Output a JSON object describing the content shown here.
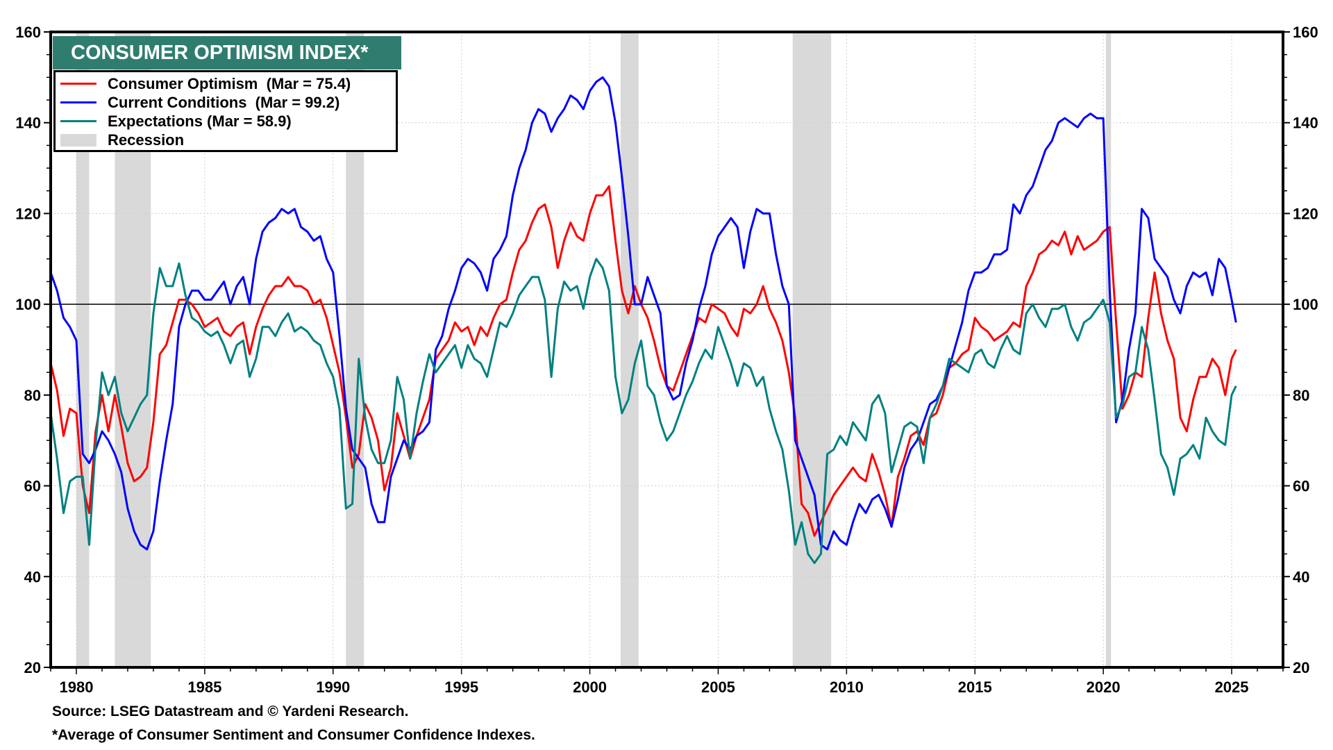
{
  "chart_data": {
    "type": "line",
    "title": "CONSUMER OPTIMISM INDEX*",
    "xlabel": "",
    "ylabel": "",
    "xlim": [
      1979.0,
      2027.0
    ],
    "ylim": [
      20,
      160
    ],
    "y_ticks": [
      20,
      40,
      60,
      80,
      100,
      120,
      140,
      160
    ],
    "x_ticks": [
      1980,
      1985,
      1990,
      1995,
      2000,
      2005,
      2010,
      2015,
      2020,
      2025
    ],
    "x_tick_labels": [
      "1980",
      "1985",
      "1990",
      "1995",
      "2000",
      "2005",
      "2010",
      "2015",
      "2020",
      "2025"
    ],
    "y_tick_labels": [
      "20",
      "40",
      "60",
      "80",
      "100",
      "120",
      "140",
      "160"
    ],
    "axes": "left-and-right",
    "grid": true,
    "reference_line": 100,
    "legend_position": "top-left",
    "recessions": [
      {
        "start": 1980.0,
        "end": 1980.5
      },
      {
        "start": 1981.5,
        "end": 1982.9
      },
      {
        "start": 1990.5,
        "end": 1991.2
      },
      {
        "start": 2001.2,
        "end": 2001.9
      },
      {
        "start": 2007.9,
        "end": 2009.4
      },
      {
        "start": 2020.1,
        "end": 2020.3
      }
    ],
    "legend": [
      {
        "label": "Consumer Optimism  (Mar = 75.4)",
        "color": "#ff0000",
        "kind": "line"
      },
      {
        "label": "Current Conditions  (Mar = 99.2)",
        "color": "#0000ff",
        "kind": "line"
      },
      {
        "label": "Expectations (Mar = 58.9)",
        "color": "#008080",
        "kind": "line"
      },
      {
        "label": "Recession",
        "color": "#d9d9d9",
        "kind": "area"
      }
    ],
    "x": [
      1979.0,
      1979.25,
      1979.5,
      1979.75,
      1980.0,
      1980.25,
      1980.5,
      1980.75,
      1981.0,
      1981.25,
      1981.5,
      1981.75,
      1982.0,
      1982.25,
      1982.5,
      1982.75,
      1983.0,
      1983.25,
      1983.5,
      1983.75,
      1984.0,
      1984.25,
      1984.5,
      1984.75,
      1985.0,
      1985.25,
      1985.5,
      1985.75,
      1986.0,
      1986.25,
      1986.5,
      1986.75,
      1987.0,
      1987.25,
      1987.5,
      1987.75,
      1988.0,
      1988.25,
      1988.5,
      1988.75,
      1989.0,
      1989.25,
      1989.5,
      1989.75,
      1990.0,
      1990.25,
      1990.5,
      1990.75,
      1991.0,
      1991.25,
      1991.5,
      1991.75,
      1992.0,
      1992.25,
      1992.5,
      1992.75,
      1993.0,
      1993.25,
      1993.5,
      1993.75,
      1994.0,
      1994.25,
      1994.5,
      1994.75,
      1995.0,
      1995.25,
      1995.5,
      1995.75,
      1996.0,
      1996.25,
      1996.5,
      1996.75,
      1997.0,
      1997.25,
      1997.5,
      1997.75,
      1998.0,
      1998.25,
      1998.5,
      1998.75,
      1999.0,
      1999.25,
      1999.5,
      1999.75,
      2000.0,
      2000.25,
      2000.5,
      2000.75,
      2001.0,
      2001.25,
      2001.5,
      2001.75,
      2002.0,
      2002.25,
      2002.5,
      2002.75,
      2003.0,
      2003.25,
      2003.5,
      2003.75,
      2004.0,
      2004.25,
      2004.5,
      2004.75,
      2005.0,
      2005.25,
      2005.5,
      2005.75,
      2006.0,
      2006.25,
      2006.5,
      2006.75,
      2007.0,
      2007.25,
      2007.5,
      2007.75,
      2008.0,
      2008.25,
      2008.5,
      2008.75,
      2009.0,
      2009.25,
      2009.5,
      2009.75,
      2010.0,
      2010.25,
      2010.5,
      2010.75,
      2011.0,
      2011.25,
      2011.5,
      2011.75,
      2012.0,
      2012.25,
      2012.5,
      2012.75,
      2013.0,
      2013.25,
      2013.5,
      2013.75,
      2014.0,
      2014.25,
      2014.5,
      2014.75,
      2015.0,
      2015.25,
      2015.5,
      2015.75,
      2016.0,
      2016.25,
      2016.5,
      2016.75,
      2017.0,
      2017.25,
      2017.5,
      2017.75,
      2018.0,
      2018.25,
      2018.5,
      2018.75,
      2019.0,
      2019.25,
      2019.5,
      2019.75,
      2020.0,
      2020.25,
      2020.5,
      2020.75,
      2021.0,
      2021.25,
      2021.5,
      2021.75,
      2022.0,
      2022.25,
      2022.5,
      2022.75,
      2023.0,
      2023.25,
      2023.5,
      2023.75,
      2024.0,
      2024.25,
      2024.5,
      2024.75,
      2025.0,
      2025.17
    ],
    "series": [
      {
        "name": "Consumer Optimism",
        "color": "#ff0000",
        "values": [
          87,
          81,
          71,
          77,
          76,
          60,
          54,
          72,
          80,
          72,
          80,
          73,
          65,
          61,
          62,
          64,
          74,
          89,
          91,
          96,
          101,
          101,
          100,
          98,
          95,
          96,
          97,
          94,
          93,
          95,
          96,
          89,
          95,
          99,
          102,
          104,
          104,
          106,
          104,
          104,
          103,
          100,
          101,
          97,
          91,
          85,
          75,
          64,
          67,
          78,
          75,
          70,
          59,
          64,
          76,
          71,
          66,
          71,
          75,
          79,
          88,
          90,
          92,
          96,
          94,
          95,
          91,
          95,
          93,
          97,
          100,
          101,
          107,
          112,
          114,
          118,
          121,
          122,
          117,
          108,
          114,
          118,
          115,
          114,
          120,
          124,
          124,
          126,
          114,
          103,
          98,
          104,
          100,
          97,
          92,
          86,
          82,
          81,
          85,
          89,
          93,
          97,
          96,
          100,
          99,
          98,
          95,
          93,
          99,
          98,
          100,
          104,
          99,
          96,
          92,
          85,
          75,
          56,
          54,
          49,
          52,
          55,
          58,
          60,
          62,
          64,
          62,
          61,
          67,
          63,
          58,
          51,
          62,
          66,
          71,
          72,
          69,
          75,
          76,
          80,
          86,
          87,
          89,
          90,
          97,
          95,
          94,
          92,
          93,
          94,
          96,
          95,
          104,
          107,
          111,
          112,
          114,
          113,
          116,
          111,
          115,
          112,
          113,
          114,
          116,
          117,
          96,
          77,
          80,
          85,
          84,
          97,
          107,
          98,
          92,
          88,
          75,
          72,
          79,
          84,
          84,
          88,
          86,
          80,
          88,
          90,
          86,
          92,
          86,
          75.4
        ]
      },
      {
        "name": "Current Conditions",
        "color": "#0000ff",
        "values": [
          107,
          103,
          97,
          95,
          92,
          67,
          65,
          68,
          72,
          70,
          67,
          63,
          55,
          50,
          47,
          46,
          50,
          61,
          70,
          78,
          95,
          100,
          103,
          103,
          101,
          101,
          103,
          105,
          100,
          104,
          106,
          100,
          110,
          116,
          118,
          119,
          121,
          120,
          121,
          117,
          116,
          114,
          115,
          110,
          107,
          93,
          77,
          68,
          66,
          64,
          56,
          52,
          52,
          62,
          66,
          70,
          68,
          71,
          72,
          74,
          90,
          93,
          99,
          103,
          108,
          110,
          109,
          107,
          103,
          110,
          112,
          115,
          124,
          130,
          134,
          140,
          143,
          142,
          138,
          141,
          143,
          146,
          145,
          143,
          147,
          149,
          150,
          148,
          140,
          128,
          115,
          100,
          100,
          106,
          102,
          98,
          82,
          79,
          80,
          87,
          92,
          99,
          104,
          111,
          115,
          117,
          119,
          117,
          108,
          116,
          121,
          120,
          120,
          111,
          104,
          100,
          70,
          66,
          62,
          58,
          47,
          46,
          50,
          48,
          47,
          52,
          56,
          54,
          57,
          58,
          55,
          51,
          57,
          64,
          68,
          70,
          74,
          78,
          79,
          82,
          86,
          91,
          96,
          103,
          107,
          107,
          108,
          111,
          111,
          112,
          122,
          120,
          124,
          126,
          130,
          134,
          136,
          140,
          141,
          140,
          139,
          141,
          142,
          141,
          141,
          103,
          74,
          79,
          90,
          98,
          121,
          119,
          110,
          108,
          106,
          101,
          98,
          104,
          107,
          106,
          107,
          102,
          110,
          108,
          101,
          96,
          94,
          104,
          102,
          99.2
        ]
      },
      {
        "name": "Expectations",
        "color": "#008080",
        "values": [
          76,
          66,
          54,
          61,
          62,
          62,
          47,
          69,
          85,
          80,
          84,
          76,
          72,
          75,
          78,
          80,
          98,
          108,
          104,
          104,
          109,
          102,
          97,
          96,
          94,
          93,
          94,
          91,
          87,
          91,
          92,
          84,
          88,
          95,
          95,
          93,
          96,
          98,
          94,
          95,
          94,
          92,
          91,
          87,
          84,
          77,
          55,
          56,
          88,
          75,
          68,
          65,
          65,
          70,
          84,
          79,
          66,
          76,
          83,
          89,
          85,
          87,
          89,
          91,
          86,
          91,
          88,
          87,
          84,
          90,
          96,
          95,
          98,
          102,
          104,
          106,
          106,
          101,
          84,
          99,
          105,
          103,
          104,
          99,
          106,
          110,
          108,
          103,
          84,
          76,
          79,
          87,
          92,
          82,
          80,
          74,
          70,
          72,
          76,
          80,
          83,
          87,
          90,
          88,
          95,
          91,
          87,
          82,
          87,
          86,
          82,
          84,
          77,
          72,
          68,
          59,
          47,
          52,
          45,
          43,
          45,
          67,
          68,
          71,
          69,
          74,
          72,
          70,
          78,
          80,
          76,
          63,
          68,
          73,
          74,
          73,
          65,
          75,
          78,
          82,
          88,
          87,
          86,
          85,
          89,
          90,
          87,
          86,
          90,
          93,
          90,
          89,
          98,
          100,
          97,
          95,
          99,
          99,
          100,
          95,
          92,
          96,
          97,
          99,
          101,
          96,
          75,
          78,
          84,
          85,
          95,
          90,
          79,
          67,
          64,
          58,
          66,
          67,
          69,
          66,
          75,
          72,
          70,
          69,
          80,
          82,
          86,
          84,
          67,
          58.9
        ]
      }
    ]
  },
  "footnotes": {
    "source": "Source: LSEG Datastream and © Yardeni Research.",
    "note": "*Average of Consumer Sentiment and Consumer Confidence Indexes."
  }
}
